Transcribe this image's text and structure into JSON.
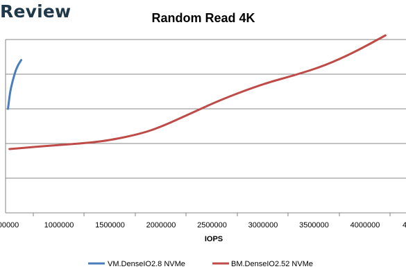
{
  "brand": "Review",
  "chart_data": {
    "type": "line",
    "title": "Random Read 4K",
    "xlabel": "IOPS",
    "ylabel": "",
    "xlim": [
      0,
      4000000
    ],
    "x_ticks": [
      "00000",
      "1000000",
      "1500000",
      "2000000",
      "2500000",
      "3000000",
      "3500000",
      "4000000",
      "4"
    ],
    "grid": true,
    "legend_position": "bottom",
    "series": [
      {
        "name": "VM.DenseIO2.8 NVMe",
        "color": "#4a7ebb",
        "x": [
          500000,
          520000,
          545000,
          570000,
          595000,
          615000,
          630000
        ],
        "y": [
          0.29,
          0.41,
          0.49,
          0.555,
          0.6,
          0.625,
          0.642
        ]
      },
      {
        "name": "BM.DenseIO2.52 NVMe",
        "color": "#be4b48",
        "x": [
          515000,
          800000,
          1100000,
          1300000,
          1500000,
          1800000,
          2000000,
          2300000,
          2600000,
          3000000,
          3300000,
          3600000,
          3900000,
          4200000
        ],
        "y": [
          0.0,
          0.018,
          0.034,
          0.046,
          0.064,
          0.11,
          0.16,
          0.26,
          0.36,
          0.47,
          0.53,
          0.6,
          0.7,
          0.82
        ]
      }
    ]
  }
}
